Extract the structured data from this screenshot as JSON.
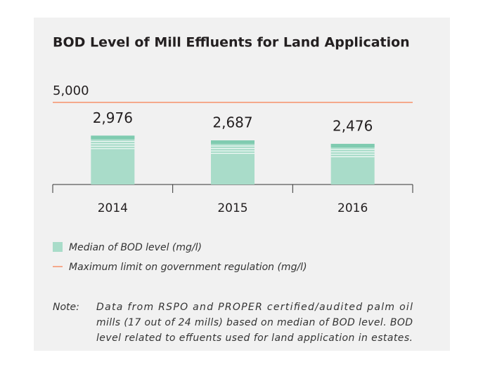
{
  "chart_data": {
    "type": "bar",
    "title": "BOD Level of Mill Effluents for Land Application",
    "categories": [
      "2014",
      "2015",
      "2016"
    ],
    "series": [
      {
        "name": "Median of BOD level (mg/l)",
        "color": "#a9dcc9",
        "values": [
          2976,
          2687,
          2476
        ],
        "value_labels": [
          "2,976",
          "2,687",
          "2,476"
        ]
      }
    ],
    "reference_line": {
      "name": "Maximum limit on government regulation (mg/l)",
      "value": 5000,
      "label": "5,000",
      "color": "#f5a98c"
    },
    "ylim": [
      0,
      5000
    ],
    "note_label": "Note:",
    "note": [
      "Data from RSPO and PROPER certified/audited palm oil",
      "mills (17 out of 24 mills) based on median of BOD level. BOD",
      "level related to effuents used for land application in estates."
    ]
  }
}
